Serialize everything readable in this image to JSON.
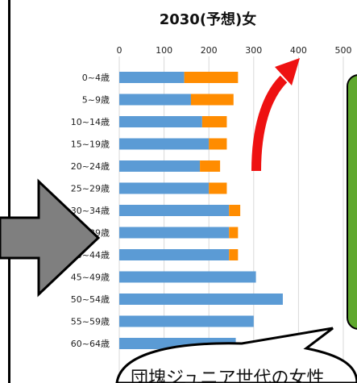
{
  "chart_data": {
    "type": "bar",
    "stacked": true,
    "orientation": "horizontal",
    "title": "2030(予想)女",
    "xlim": [
      0,
      500
    ],
    "xticks": [
      0,
      100,
      200,
      300,
      400,
      500
    ],
    "grid": true,
    "categories": [
      "0~4歳",
      "5~9歳",
      "10~14歳",
      "15~19歳",
      "20~24歳",
      "25~29歳",
      "30~34歳",
      "35~39歳",
      "40~44歳",
      "45~49歳",
      "50~54歳",
      "55~59歳",
      "60~64歳"
    ],
    "series": [
      {
        "color": "#5b9bd5",
        "values": [
          145,
          160,
          185,
          200,
          180,
          200,
          245,
          245,
          245,
          305,
          365,
          300,
          260
        ]
      },
      {
        "color": "#ff8c00",
        "values": [
          120,
          95,
          55,
          40,
          45,
          40,
          25,
          20,
          20,
          0,
          0,
          0,
          0
        ]
      }
    ]
  },
  "overlay": {
    "green_box_color": "#5fa82e",
    "arrow_color": "#ee1111",
    "gray_arrow_color": "#7f7f7f",
    "callout_text": "団塊ジュニア世代の女性"
  }
}
